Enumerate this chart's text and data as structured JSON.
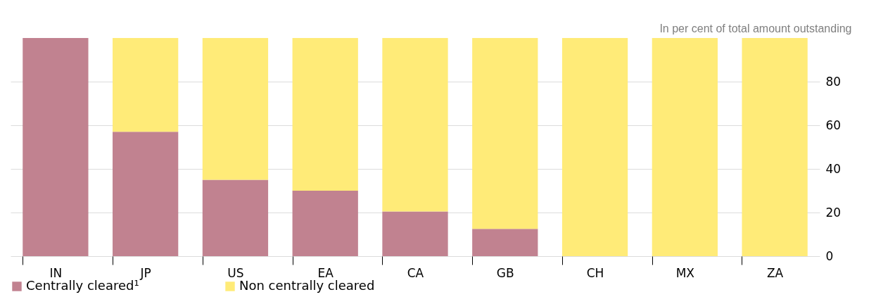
{
  "chart_data": {
    "type": "bar",
    "stacked": true,
    "ylabel": "In per cent of total amount outstanding",
    "categories": [
      "IN",
      "JP",
      "US",
      "EA",
      "CA",
      "GB",
      "CH",
      "MX",
      "ZA"
    ],
    "series": [
      {
        "name": "Centrally cleared¹",
        "color": "#c18290",
        "values": [
          100,
          57,
          35,
          30,
          20.5,
          12.5,
          0,
          0,
          0
        ]
      },
      {
        "name": "Non centrally cleared",
        "color": "#ffeb78",
        "values": [
          0,
          43,
          65,
          70,
          79.5,
          87.5,
          100,
          100,
          100
        ]
      }
    ],
    "ylim": [
      0,
      100
    ],
    "yticks": [
      0,
      20,
      40,
      60,
      80
    ],
    "grid": "y",
    "legend": "bottom left"
  }
}
